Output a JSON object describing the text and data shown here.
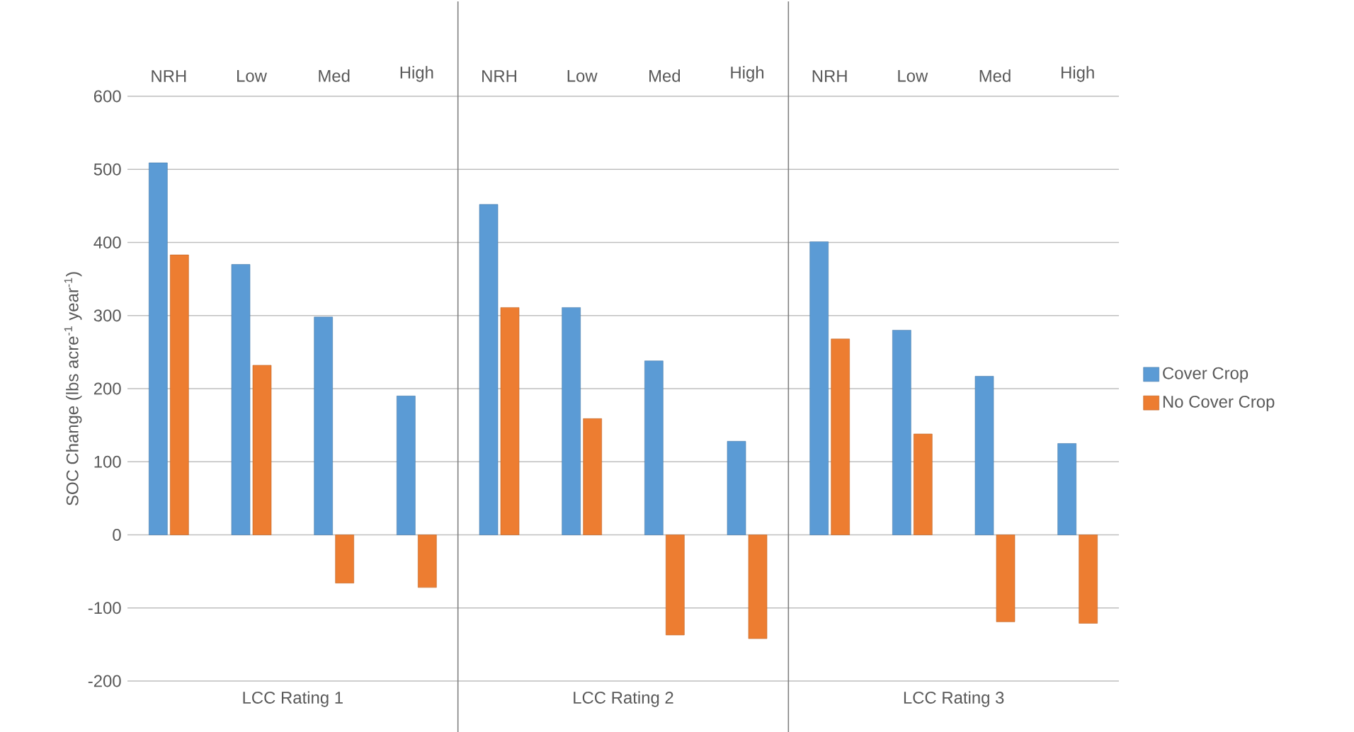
{
  "chart_data": {
    "type": "bar",
    "ylabel": "SOC Change (lbs acre$^{-1}$ year$^{-1}$)",
    "categories": [
      "NRH",
      "Low",
      "Med",
      "High",
      "NRH",
      "Low",
      "Med",
      "High",
      "NRH",
      "Low",
      "Med",
      "High"
    ],
    "series": [
      {
        "name": "Cover Crop",
        "color": "#5b9bd5",
        "values": [
          509,
          370,
          298,
          190,
          452,
          311,
          238,
          128,
          401,
          280,
          217,
          125
        ]
      },
      {
        "name": "No Cover Crop",
        "color": "#ed7d31",
        "values": [
          383,
          232,
          -66,
          -72,
          311,
          159,
          -137,
          -142,
          268,
          138,
          -119,
          -121
        ]
      }
    ],
    "ylim": [
      -200,
      600
    ],
    "yticks": [
      -200,
      -100,
      0,
      100,
      200,
      300,
      400,
      500,
      600
    ],
    "grid": "y",
    "legend": "right",
    "annotations": [
      "LCC Rating 1",
      "LCC Rating 2",
      "LCC Rating 3"
    ]
  }
}
